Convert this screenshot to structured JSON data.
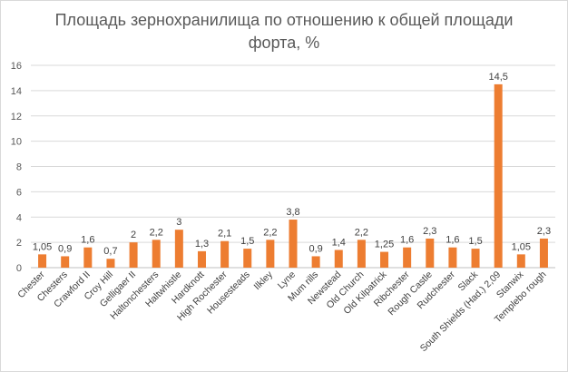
{
  "chart_data": {
    "type": "bar",
    "title_lines": [
      "Площадь зернохранилища по отношению к общей площади",
      "форта, %"
    ],
    "xlabel": "",
    "ylabel": "",
    "ylim": [
      0,
      16
    ],
    "yticks": [
      0,
      2,
      4,
      6,
      8,
      10,
      12,
      14,
      16
    ],
    "grid": true,
    "legend": "none",
    "bar_color": "#ed7d31",
    "categories": [
      "Chester",
      "Chesters",
      "Crawford II",
      "Croy Hill",
      "Gelligaer II",
      "Haltonchesters",
      "Haltwhistle",
      "Hardknott",
      "High Rochester",
      "Housesteads",
      "Ilkley",
      "Lyne",
      "Mum rills",
      "Newstead",
      "Old Church",
      "Old Kilpatrick",
      "Ribchester",
      "Rough Castle",
      "Rudchester",
      "Slack",
      "South Shields (Had.) 2,09",
      "Stanwix",
      "Templebo rough"
    ],
    "values": [
      1.05,
      0.9,
      1.6,
      0.7,
      2,
      2.2,
      3,
      1.3,
      2.1,
      1.5,
      2.2,
      3.8,
      0.9,
      1.4,
      2.2,
      1.25,
      1.6,
      2.3,
      1.6,
      1.5,
      14.5,
      1.05,
      2.3
    ],
    "data_labels": [
      "1,05",
      "0,9",
      "1,6",
      "0,7",
      "2",
      "2,2",
      "3",
      "1,3",
      "2,1",
      "1,5",
      "2,2",
      "3,8",
      "0,9",
      "1,4",
      "2,2",
      "1,25",
      "1,6",
      "2,3",
      "1,6",
      "1,5",
      "14,5",
      "1,05",
      "2,3"
    ]
  }
}
